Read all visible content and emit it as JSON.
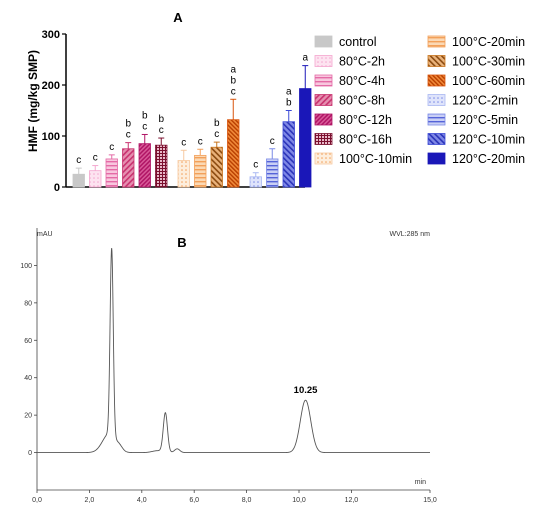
{
  "colors": {
    "control": "#c8c8c8",
    "c80_2h": "#f4a6cf",
    "c80_4h": "#e46aa6",
    "c80_8h": "#c8326f",
    "c80_12h": "#b01565",
    "c80_16h": "#7a0f2e",
    "c100_10": "#f7c9a0",
    "c100_20": "#f2a05a",
    "c100_30": "#c8751e",
    "c100_60": "#d9540c",
    "c120_2": "#aab8f2",
    "c120_5": "#7b8ae6",
    "c120_10": "#3c4ad6",
    "c120_20": "#1a17b8",
    "axis": "#000000",
    "trace": "#555555"
  },
  "chart_data": [
    {
      "type": "bar",
      "panel_label": "A",
      "ylabel": "HMF (mg/kg SMP)",
      "xlabel": "",
      "ylim": [
        0,
        300
      ],
      "yticks": [
        0,
        100,
        200,
        300
      ],
      "categories": [
        "control",
        "80°C-2h",
        "80°C-4h",
        "80°C-8h",
        "80°C-12h",
        "80°C-16h",
        "100°C-10min",
        "100°C-20min",
        "100°C-30min",
        "100°C-60min",
        "120°C-2min",
        "120°C-5min",
        "120°C-10min",
        "120°C-20min"
      ],
      "values": [
        25,
        32,
        55,
        75,
        85,
        82,
        52,
        62,
        78,
        132,
        20,
        55,
        128,
        193
      ],
      "errors": [
        12,
        10,
        8,
        12,
        18,
        14,
        20,
        12,
        10,
        40,
        8,
        20,
        22,
        45
      ],
      "significance": [
        [
          "c"
        ],
        [
          "c"
        ],
        [
          "c"
        ],
        [
          "b",
          "c"
        ],
        [
          "b",
          "c"
        ],
        [
          "b",
          "c"
        ],
        [
          "c"
        ],
        [
          "c"
        ],
        [
          "b",
          "c"
        ],
        [
          "a",
          "b",
          "c"
        ],
        [
          "c"
        ],
        [
          "c"
        ],
        [
          "a",
          "b"
        ],
        [
          "a"
        ]
      ],
      "fills": [
        "solid",
        "dots",
        "hlines",
        "diag",
        "diag-dense",
        "grid",
        "dots",
        "hlines",
        "diag",
        "diag-dense",
        "dots",
        "hlines",
        "diag",
        "solid"
      ],
      "legend_placement": "right, two columns",
      "grid": false
    },
    {
      "type": "line",
      "panel_label": "B",
      "ylabel": "mAU",
      "xlabel": "min",
      "instrument_note": "WVL:285 nm",
      "xlim": [
        0,
        15
      ],
      "ylim": [
        -20,
        120
      ],
      "xticks": [
        "0,0",
        "2,0",
        "4,0",
        "6,0",
        "8,0",
        "10,0",
        "12,0",
        "15,0"
      ],
      "xtick_values": [
        0,
        2,
        4,
        6,
        8,
        10,
        12,
        15
      ],
      "yticks": [
        0,
        20,
        40,
        60,
        80,
        100
      ],
      "baseline": 0,
      "peaks": [
        {
          "center": 2.75,
          "height": 10,
          "width": 0.25
        },
        {
          "center": 2.85,
          "height": 100,
          "width": 0.06
        },
        {
          "center": 3.15,
          "height": 2,
          "width": 0.12
        },
        {
          "center": 4.6,
          "height": 1,
          "width": 0.2
        },
        {
          "center": 4.9,
          "height": 21,
          "width": 0.08
        },
        {
          "center": 5.35,
          "height": 2,
          "width": 0.1
        },
        {
          "center": 10.25,
          "height": 28,
          "width": 0.2
        }
      ],
      "annotations": [
        {
          "x": 10.25,
          "text": "10.25"
        }
      ]
    }
  ]
}
